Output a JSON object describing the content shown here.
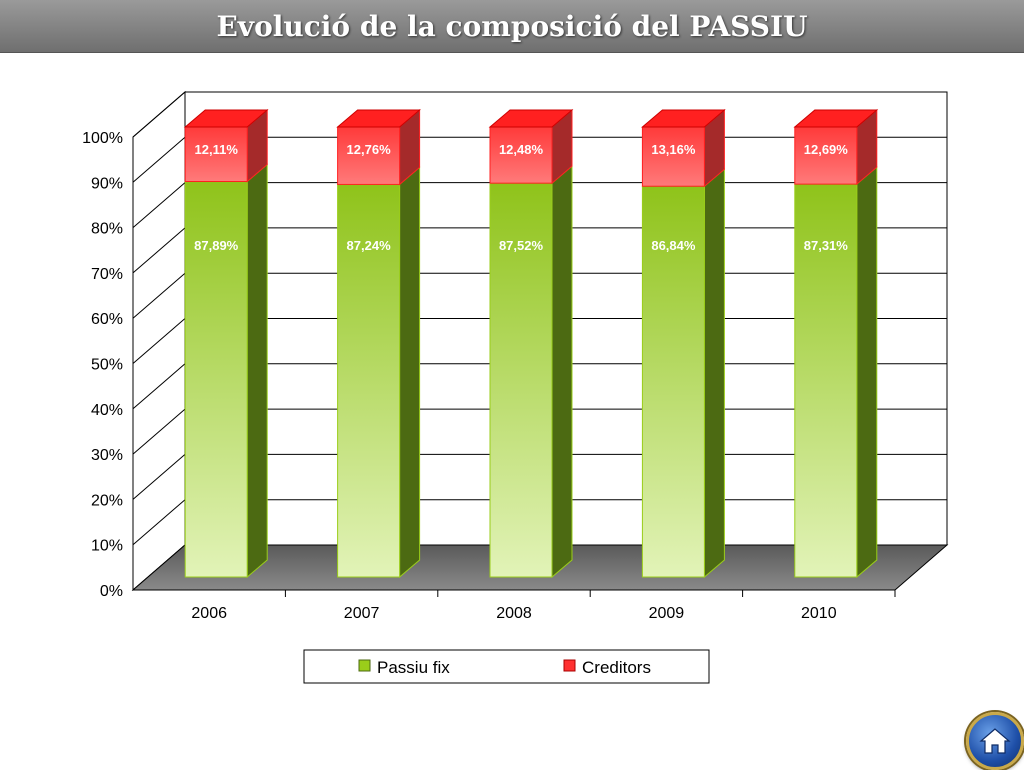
{
  "title": "Evolució de la composició del PASSIU",
  "chart_data": {
    "type": "bar",
    "stacked": true,
    "three_d": true,
    "categories": [
      "2006",
      "2007",
      "2008",
      "2009",
      "2010"
    ],
    "series": [
      {
        "name": "Passiu fix",
        "values": [
          87.89,
          87.24,
          87.52,
          86.84,
          87.31
        ],
        "labels": [
          "87,89%",
          "87,24%",
          "87,52%",
          "86,84%",
          "87,31%"
        ],
        "color": "#9acd1a"
      },
      {
        "name": "Creditors",
        "values": [
          12.11,
          12.76,
          12.48,
          13.16,
          12.69
        ],
        "labels": [
          "12,11%",
          "12,76%",
          "12,48%",
          "13,16%",
          "12,69%"
        ],
        "color": "#ff3030"
      }
    ],
    "y_ticks": [
      "0%",
      "10%",
      "20%",
      "30%",
      "40%",
      "50%",
      "60%",
      "70%",
      "80%",
      "90%",
      "100%"
    ],
    "ylim": [
      0,
      100
    ],
    "grid": true,
    "legend": "bottom"
  },
  "colors": {
    "title_bar": "#808080",
    "floor": "#6e6e6e",
    "green_side": "#4c6a12",
    "red_top": "#ff2020"
  },
  "icons": {
    "home": "home-icon"
  }
}
